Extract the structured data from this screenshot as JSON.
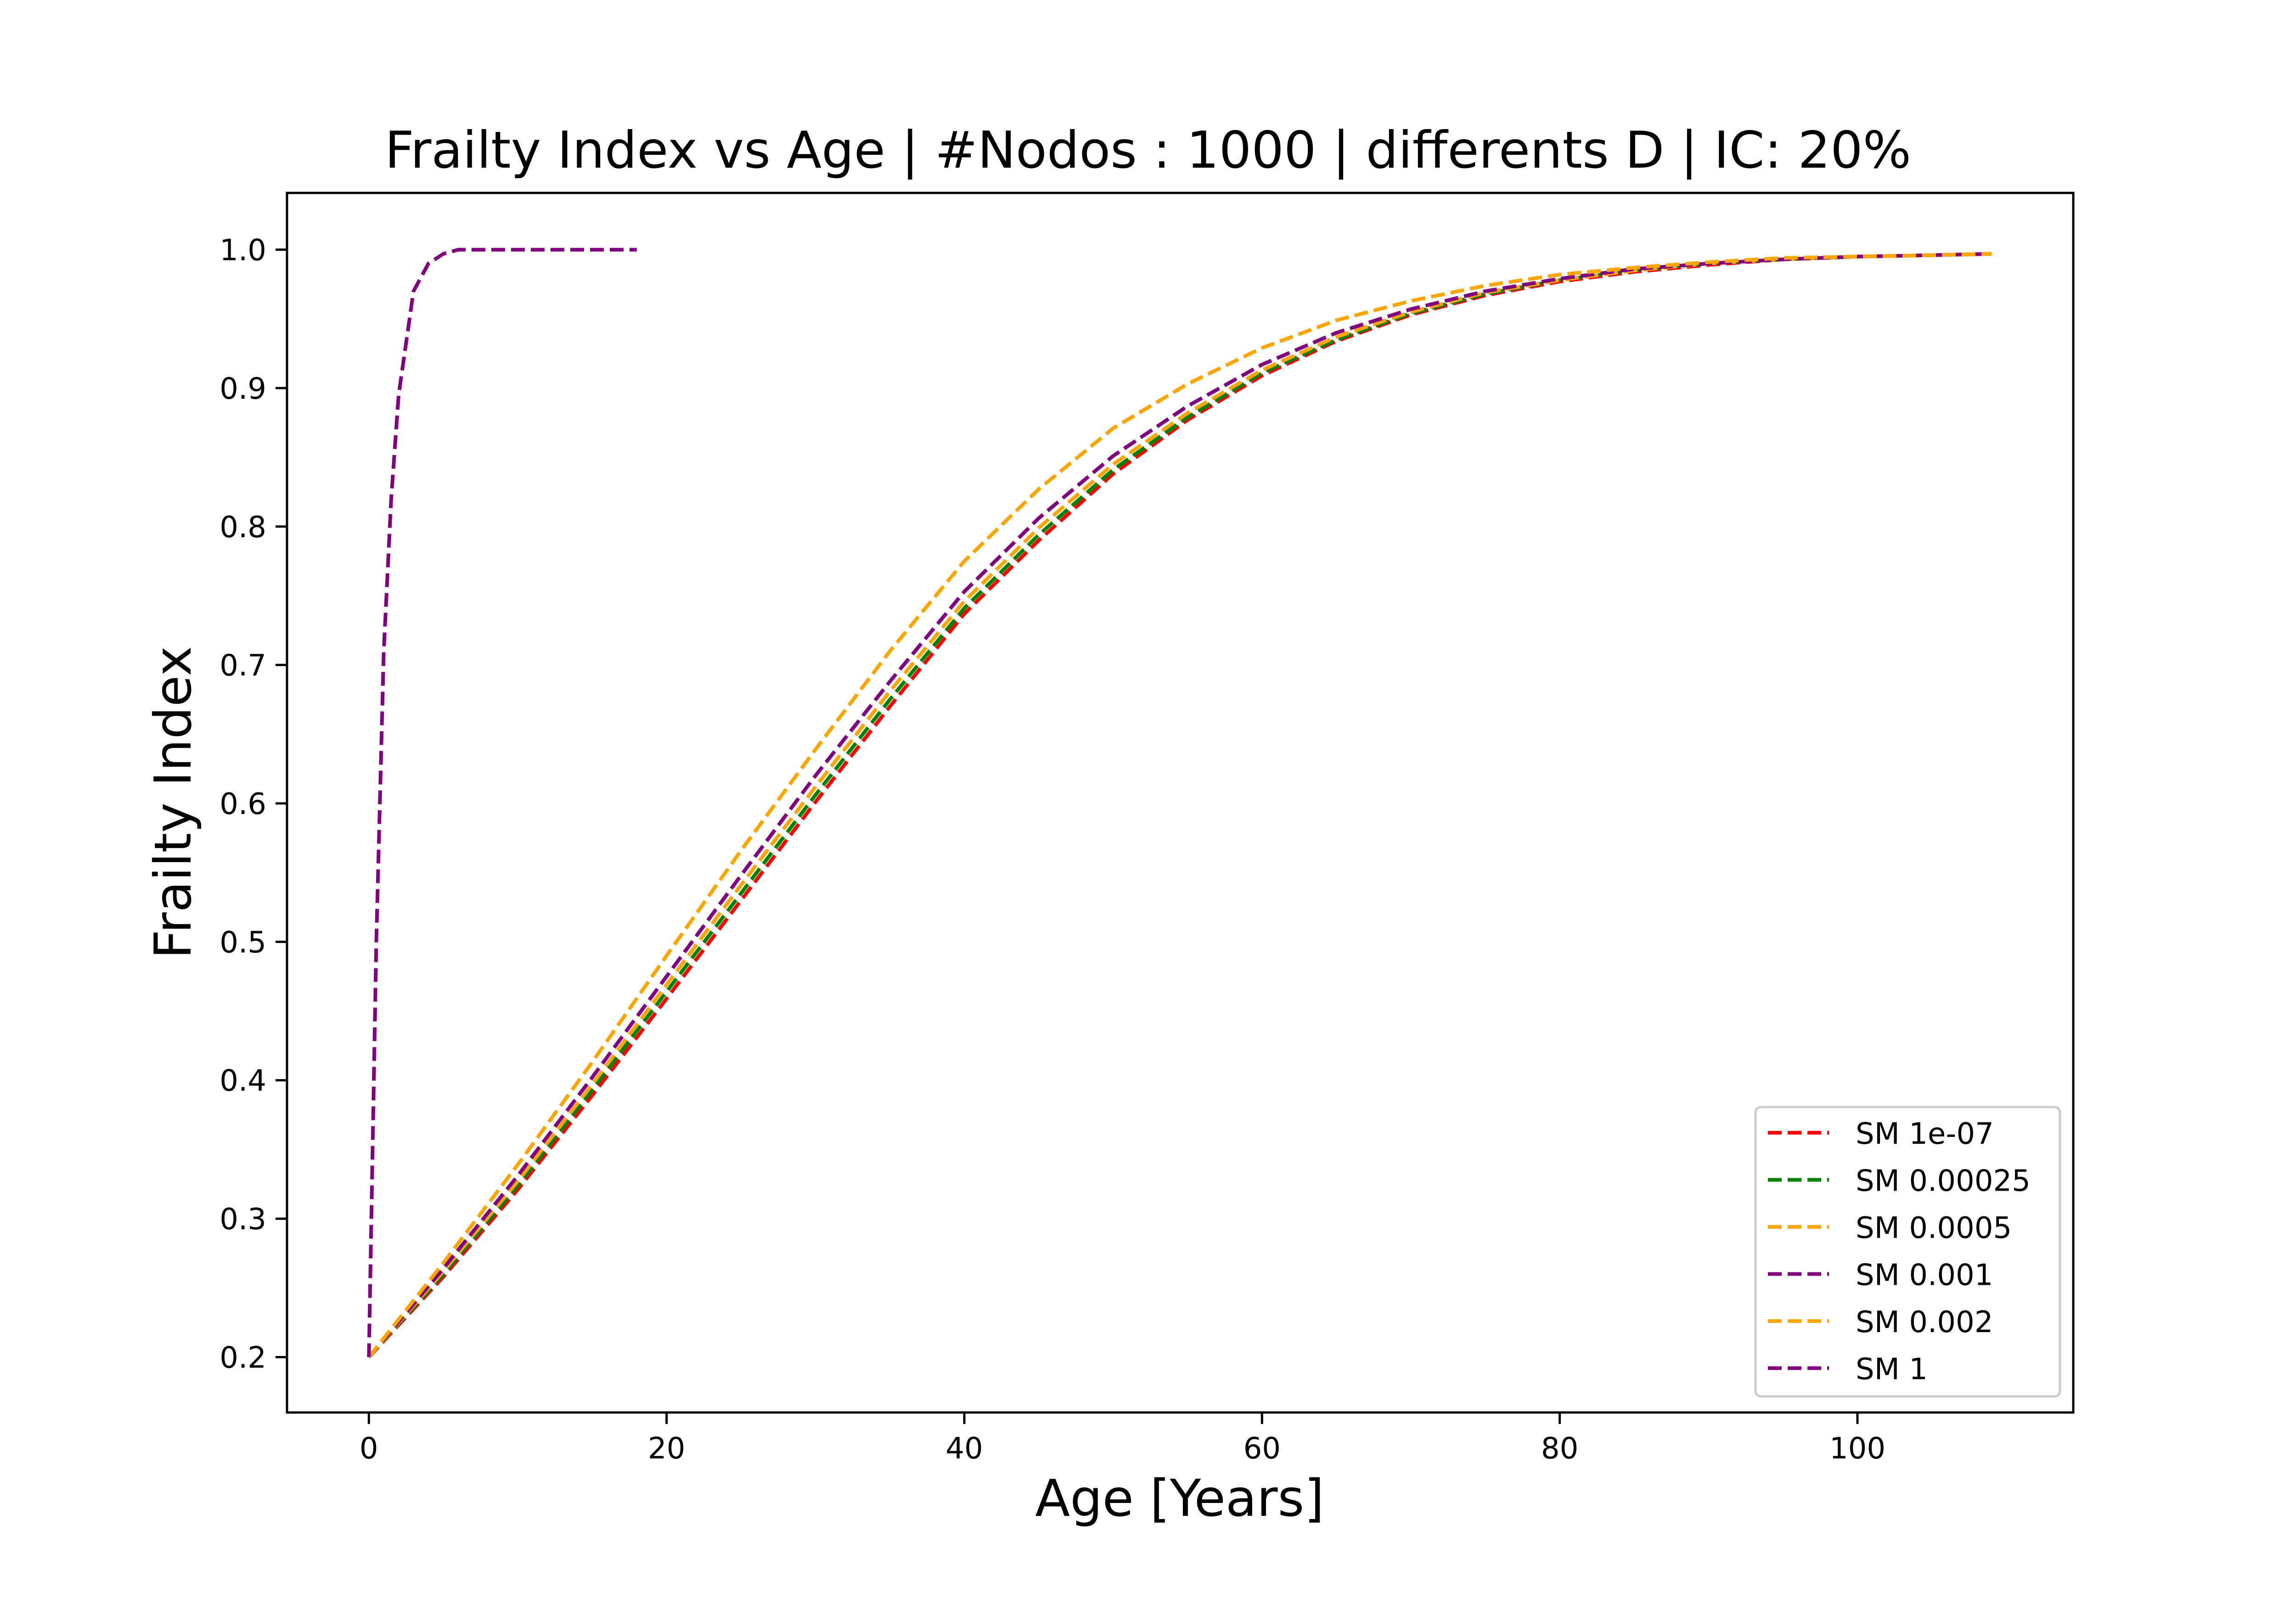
{
  "chart_data": {
    "type": "line",
    "title": "Frailty Index vs Age | #Nodos : 1000 | differents D | IC: 20%",
    "xlabel": "Age [Years]",
    "ylabel": "Frailty Index",
    "xlim": [
      -5.5,
      114.5
    ],
    "ylim": [
      0.16,
      1.041
    ],
    "xticks": [
      0,
      20,
      40,
      60,
      80,
      100
    ],
    "yticks": [
      0.2,
      0.3,
      0.4,
      0.5,
      0.6,
      0.7,
      0.8,
      0.9,
      1.0
    ],
    "xtick_labels": [
      "0",
      "20",
      "40",
      "60",
      "80",
      "100"
    ],
    "ytick_labels": [
      "0.2",
      "0.3",
      "0.4",
      "0.5",
      "0.6",
      "0.7",
      "0.8",
      "0.9",
      "1.0"
    ],
    "grid": false,
    "legend_position": "lower-right",
    "line_style": "dashed",
    "series": [
      {
        "name": "SM 1e-07",
        "color": "#ff0000",
        "x": [
          0,
          5,
          10,
          15,
          20,
          25,
          30,
          35,
          40,
          45,
          50,
          55,
          60,
          65,
          70,
          75,
          80,
          85,
          90,
          95,
          100,
          105,
          109
        ],
        "y": [
          0.2,
          0.258,
          0.321,
          0.389,
          0.459,
          0.53,
          0.601,
          0.67,
          0.737,
          0.79,
          0.838,
          0.877,
          0.909,
          0.934,
          0.953,
          0.967,
          0.977,
          0.984,
          0.989,
          0.993,
          0.995,
          0.996,
          0.997
        ]
      },
      {
        "name": "SM 0.00025",
        "color": "#008000",
        "x": [
          0,
          5,
          10,
          15,
          20,
          25,
          30,
          35,
          40,
          45,
          50,
          55,
          60,
          65,
          70,
          75,
          80,
          85,
          90,
          95,
          100,
          105,
          109
        ],
        "y": [
          0.2,
          0.26,
          0.324,
          0.393,
          0.464,
          0.535,
          0.606,
          0.675,
          0.741,
          0.794,
          0.841,
          0.879,
          0.911,
          0.935,
          0.954,
          0.968,
          0.978,
          0.985,
          0.99,
          0.993,
          0.995,
          0.996,
          0.997
        ]
      },
      {
        "name": "SM 0.0005",
        "color": "#ffa500",
        "x": [
          0,
          5,
          10,
          15,
          20,
          25,
          30,
          35,
          40,
          45,
          50,
          55,
          60,
          65,
          70,
          75,
          80,
          85,
          90,
          95,
          100,
          105,
          109
        ],
        "y": [
          0.2,
          0.262,
          0.327,
          0.397,
          0.469,
          0.541,
          0.612,
          0.681,
          0.746,
          0.799,
          0.845,
          0.882,
          0.913,
          0.937,
          0.955,
          0.969,
          0.978,
          0.985,
          0.99,
          0.993,
          0.995,
          0.996,
          0.997
        ]
      },
      {
        "name": "SM 0.001",
        "color": "#800080",
        "x": [
          0,
          5,
          10,
          15,
          20,
          25,
          30,
          35,
          40,
          45,
          50,
          55,
          60,
          65,
          70,
          75,
          80,
          85,
          90,
          95,
          100,
          105,
          109
        ],
        "y": [
          0.2,
          0.264,
          0.331,
          0.402,
          0.475,
          0.548,
          0.62,
          0.688,
          0.753,
          0.806,
          0.851,
          0.887,
          0.917,
          0.94,
          0.957,
          0.97,
          0.979,
          0.986,
          0.99,
          0.993,
          0.995,
          0.996,
          0.997
        ]
      },
      {
        "name": "SM 0.002",
        "color": "#ffa500",
        "x": [
          0,
          5,
          10,
          15,
          20,
          25,
          30,
          35,
          40,
          45,
          50,
          55,
          60,
          65,
          70,
          75,
          80,
          85,
          90,
          95,
          100,
          105,
          109
        ],
        "y": [
          0.2,
          0.268,
          0.339,
          0.413,
          0.49,
          0.566,
          0.639,
          0.71,
          0.775,
          0.827,
          0.871,
          0.903,
          0.929,
          0.949,
          0.963,
          0.974,
          0.982,
          0.987,
          0.991,
          0.994,
          0.995,
          0.996,
          0.997
        ]
      },
      {
        "name": "SM 1",
        "color": "#800080",
        "x": [
          0,
          0.5,
          1,
          1.5,
          2,
          3,
          4,
          5,
          6,
          8,
          10,
          12,
          14,
          16,
          18
        ],
        "y": [
          0.2,
          0.5,
          0.71,
          0.82,
          0.895,
          0.97,
          0.99,
          0.997,
          1.0,
          1.0,
          1.0,
          1.0,
          1.0,
          1.0,
          1.0
        ]
      }
    ]
  }
}
